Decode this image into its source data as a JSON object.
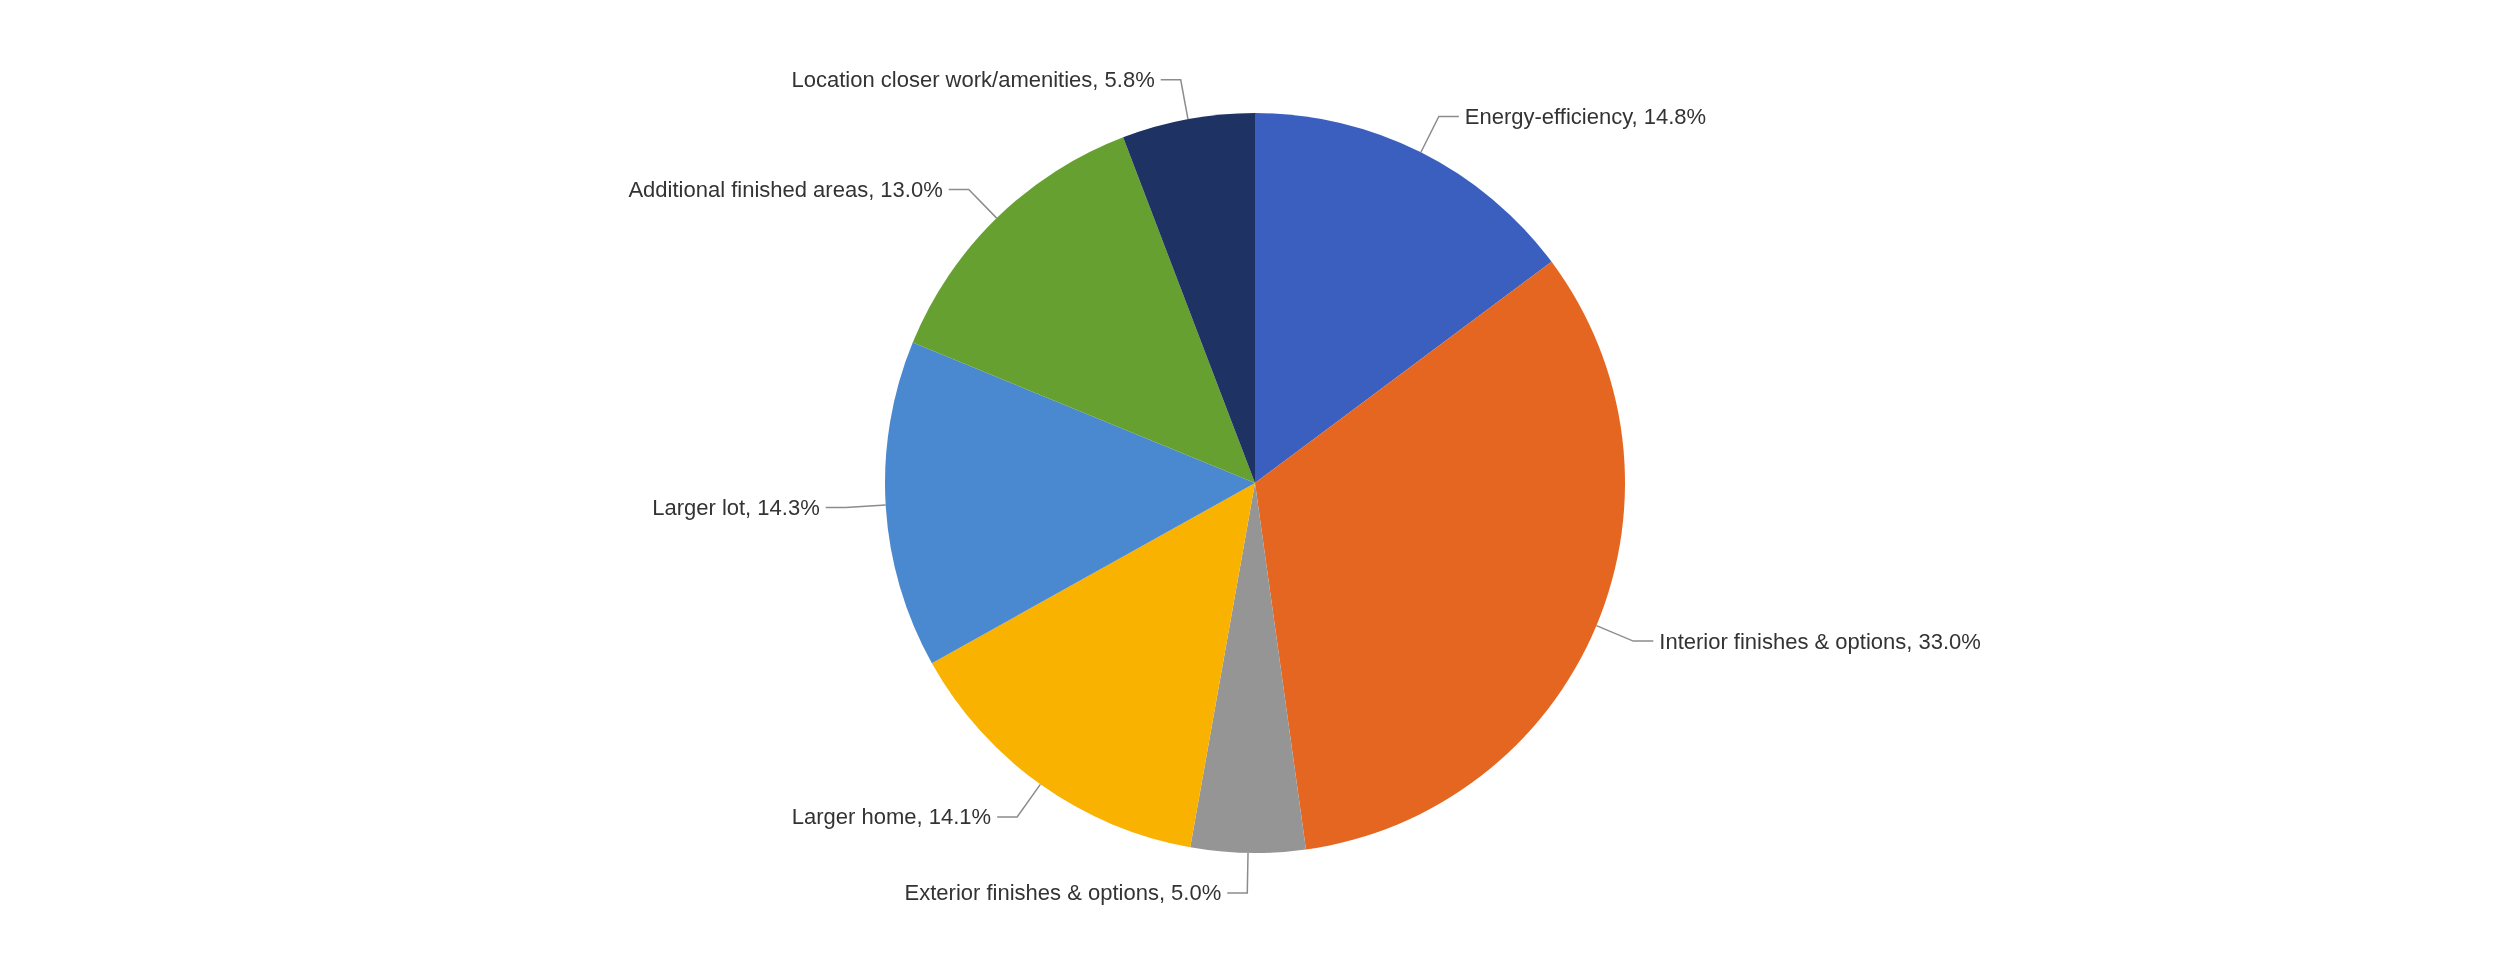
{
  "chart_data": {
    "type": "pie",
    "categories": [
      "Energy-efficiency",
      "Interior finishes & options",
      "Exterior finishes & options",
      "Larger home",
      "Larger lot",
      "Additional finished areas",
      "Location closer work/amenities"
    ],
    "values": [
      14.8,
      33.0,
      5.0,
      14.1,
      14.3,
      13.0,
      5.8
    ],
    "value_labels": [
      "14.8%",
      "33.0%",
      "5.0%",
      "14.1%",
      "14.3%",
      "13.0%",
      "5.8%"
    ],
    "colors": [
      "#3a5fbf",
      "#e46620",
      "#959595",
      "#f9b200",
      "#4a88cf",
      "#66a030",
      "#1e3264"
    ],
    "legend": false
  }
}
